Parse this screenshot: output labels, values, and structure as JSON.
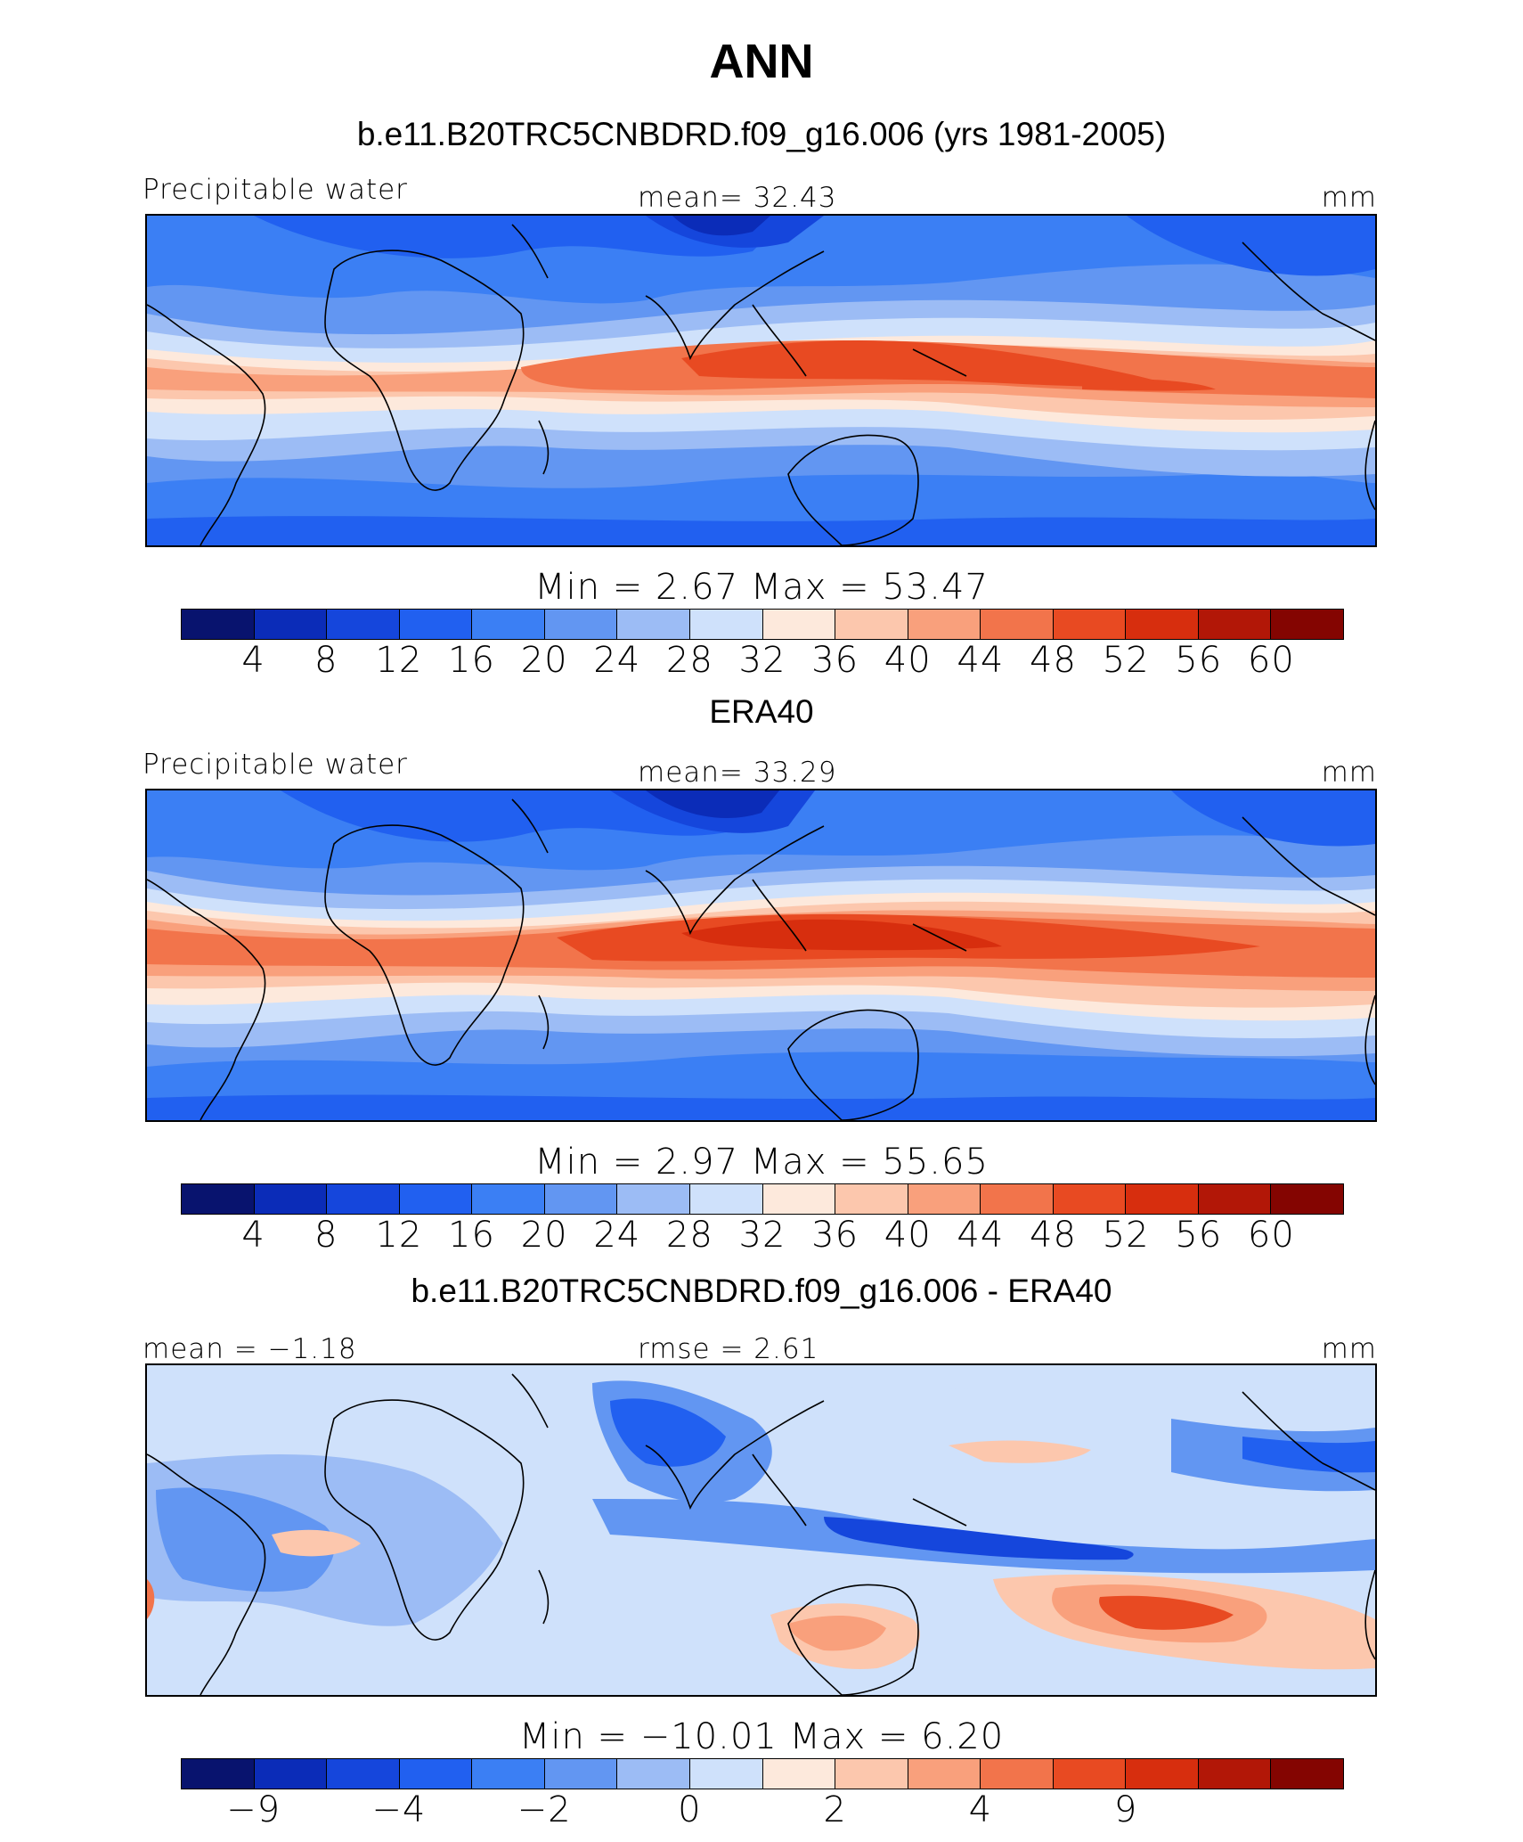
{
  "title": "ANN",
  "panels": [
    {
      "heading": "b.e11.B20TRC5CNBDRD.f09_g16.006 (yrs 1981-2005)",
      "left_label": "Precipitable water",
      "center_label": "mean=   32.43",
      "unit": "mm",
      "minmax": "Min =    2.67  Max =   53.47",
      "colorbar_ticks": [
        "4",
        "8",
        "12",
        "16",
        "20",
        "24",
        "28",
        "32",
        "36",
        "40",
        "44",
        "48",
        "52",
        "56",
        "60"
      ],
      "field_summary": {
        "mean": 32.43,
        "min": 2.67,
        "max": 53.47
      }
    },
    {
      "heading": "ERA40",
      "left_label": "Precipitable water",
      "center_label": "mean=   33.29",
      "unit": "mm",
      "minmax": "Min =    2.97  Max =   55.65",
      "colorbar_ticks": [
        "4",
        "8",
        "12",
        "16",
        "20",
        "24",
        "28",
        "32",
        "36",
        "40",
        "44",
        "48",
        "52",
        "56",
        "60"
      ],
      "field_summary": {
        "mean": 33.29,
        "min": 2.97,
        "max": 55.65
      }
    },
    {
      "heading": "b.e11.B20TRC5CNBDRD.f09_g16.006 - ERA40",
      "left_label": "mean =  −1.18",
      "center_label": "rmse =    2.61",
      "unit": "mm",
      "minmax": "Min = −10.01  Max =    6.20",
      "colorbar_ticks": [
        "−9",
        "−4",
        "−2",
        "0",
        "2",
        "4",
        "9"
      ],
      "field_summary": {
        "mean": -1.18,
        "rmse": 2.61,
        "min": -10.01,
        "max": 6.2
      }
    }
  ],
  "colorbar_colors": [
    "#08136e",
    "#0b2cb8",
    "#1546dc",
    "#2160f0",
    "#3b7ff4",
    "#6296f2",
    "#9cbcf5",
    "#cfe1fb",
    "#fde9dc",
    "#fcc7ad",
    "#f9a07c",
    "#f2744b",
    "#e84a22",
    "#d72e0e",
    "#b21707",
    "#840501"
  ]
}
